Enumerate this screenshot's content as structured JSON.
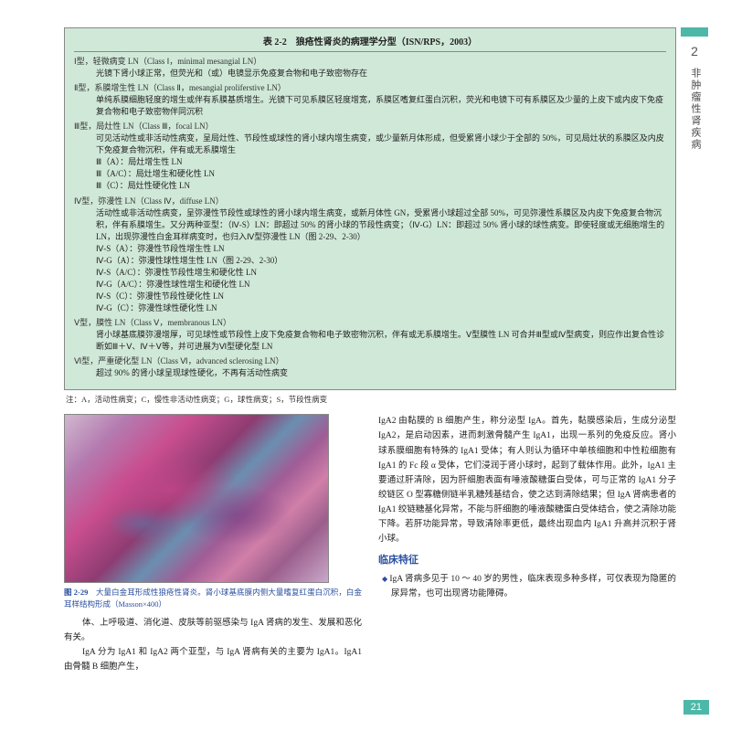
{
  "sideTab": {
    "number": "2",
    "text": "非肿瘤性肾疾病"
  },
  "table": {
    "title": "表 2-2　狼疮性肾炎的病理学分型（ISN/RPS，2003）",
    "types": [
      {
        "head": "Ⅰ型，轻微病变 LN（Class Ⅰ，minimal mesangial LN）",
        "body": "光镜下肾小球正常，但荧光和（或）电镜显示免疫复合物和电子致密物存在"
      },
      {
        "head": "Ⅱ型，系膜增生性 LN（Class Ⅱ，mesangial proliferstive LN）",
        "body": "单纯系膜细胞轻度的增生或伴有系膜基质增生。光镜下可见系膜区轻度增宽，系膜区嗜复红蛋白沉积，荧光和电镜下可有系膜区及少量的上皮下或内皮下免疫复合物和电子致密物伴同沉积"
      },
      {
        "head": "Ⅲ型，局灶性 LN（Class Ⅲ，focal LN）",
        "body": "可见活动性或非活动性病变，呈局灶性、节段性或球性的肾小球内增生病变，或少量新月体形成，但受累肾小球少于全部的 50%，可见局灶状的系膜区及内皮下免疫复合物沉积，伴有或无系膜增生",
        "subs": [
          "Ⅲ（A）：局灶增生性 LN",
          "Ⅲ（A/C）：局灶增生和硬化性 LN",
          "Ⅲ（C）：局灶性硬化性 LN"
        ]
      },
      {
        "head": "Ⅳ型，弥漫性 LN（Class Ⅳ，diffuse LN）",
        "body": "活动性或非活动性病变，呈弥漫性节段性或球性的肾小球内增生病变，或新月体性 GN，受累肾小球超过全部 50%，可见弥漫性系膜区及内皮下免疫复合物沉积，伴有系膜增生。又分两种亚型：（Ⅳ-S）LN：即超过 50% 的肾小球的节段性病变；（Ⅳ-G）LN：即超过 50% 肾小球的球性病变。即使轻度或无细胞增生的 LN，出现弥漫性白金耳样病变时，也归入Ⅳ型弥漫性 LN（图 2-29、2-30）",
        "subs": [
          "Ⅳ-S（A）：弥漫性节段性增生性 LN",
          "Ⅳ-G（A）：弥漫性球性增生性 LN（图 2-29、2-30）",
          "Ⅳ-S（A/C）：弥漫性节段性增生和硬化性 LN",
          "Ⅳ-G（A/C）：弥漫性球性增生和硬化性 LN",
          "Ⅳ-S（C）：弥漫性节段性硬化性 LN",
          "Ⅳ-G（C）：弥漫性球性硬化性 LN"
        ]
      },
      {
        "head": "Ⅴ型，膜性 LN（Class Ⅴ，membranous LN）",
        "body": "肾小球基底膜弥漫增厚，可见球性或节段性上皮下免疫复合物和电子致密物沉积，伴有或无系膜增生。Ⅴ型膜性 LN 可合并Ⅲ型或Ⅳ型病变，则应作出复合性诊断如Ⅲ＋Ⅴ、Ⅳ＋Ⅴ等，并可进展为Ⅵ型硬化型 LN"
      },
      {
        "head": "Ⅵ型，严重硬化型 LN（Class Ⅵ，advanced sclerosing LN）",
        "body": "超过 90% 的肾小球呈现球性硬化，不再有活动性病变"
      }
    ],
    "footnote": "注：A，活动性病变；C，慢性非活动性病变；G，球性病变；S，节段性病变"
  },
  "figure": {
    "label": "图 2-29",
    "caption": "大量白金耳形成性狼疮性肾炎。肾小球基底膜内侧大量嗜复红蛋白沉积，白金耳样结构形成（Masson×400）"
  },
  "leftText": {
    "p1": "体、上呼吸道、消化道、皮肤等前驱感染与 IgA 肾病的发生、发展和恶化有关。",
    "p2": "IgA 分为 IgA1 和 IgA2 两个亚型，与 IgA 肾病有关的主要为 IgA1。IgA1 由骨髓 B 细胞产生，"
  },
  "rightText": {
    "p1": "IgA2 由黏膜的 B 细胞产生，称分泌型 IgA。首先，黏膜感染后，生成分泌型 IgA2，是启动因素，进而刺激骨髓产生 IgA1，出现一系列的免疫反应。肾小球系膜细胞有特殊的 IgA1 受体；有人则认为循环中单核细胞和中性粒细胞有 IgA1 的 Fc 段 α 受体，它们浸润于肾小球时，起到了载体作用。此外，IgA1 主要通过肝清除，因为肝细胞表面有唾液酸糖蛋白受体，可与正常的 IgA1 分子绞链区 O 型寡糖侧链半乳糖残基结合，使之达到清除结果；但 IgA 肾病患者的 IgA1 绞链糖基化异常，不能与肝细胞的唾液酸糖蛋白受体结合，使之清除功能下降。若肝功能异常，导致清除率更低，最终出现血内 IgA1 升高并沉积于肾小球。"
  },
  "section": {
    "heading": "临床特征",
    "bullet": "IgA 肾病多见于 10 ～ 40 岁的男性，临床表现多种多样，可仅表现为隐匿的尿异常，也可出现肾功能障碍。"
  },
  "pageNumber": "21"
}
